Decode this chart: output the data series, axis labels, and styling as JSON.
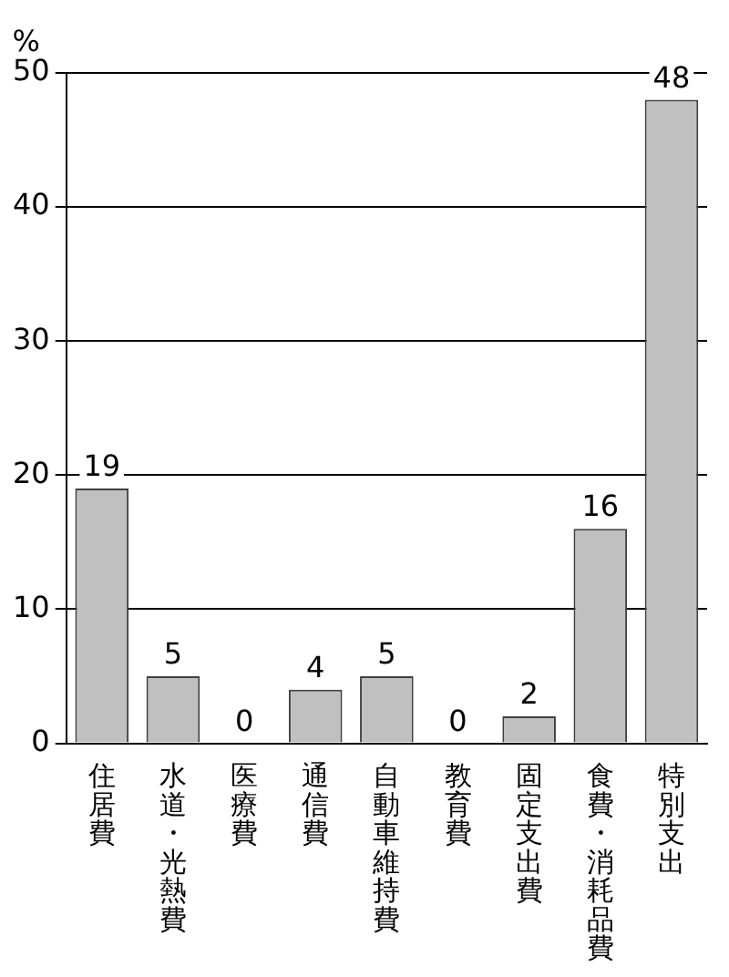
{
  "chart_data": {
    "type": "bar",
    "ylabel": "%",
    "categories": [
      "住居費",
      "水道・光熱費",
      "医療費",
      "通信費",
      "自動車維持費",
      "教育費",
      "固定支出費",
      "食費・消耗品費",
      "特別支出"
    ],
    "values": [
      19,
      5,
      0,
      4,
      5,
      0,
      2,
      16,
      48
    ],
    "color": "#c0c0c0",
    "ylim": [
      0,
      50
    ],
    "yticks": [
      0,
      10,
      20,
      30,
      40,
      50
    ],
    "grid": "y",
    "legend": false,
    "data_labels": true
  }
}
